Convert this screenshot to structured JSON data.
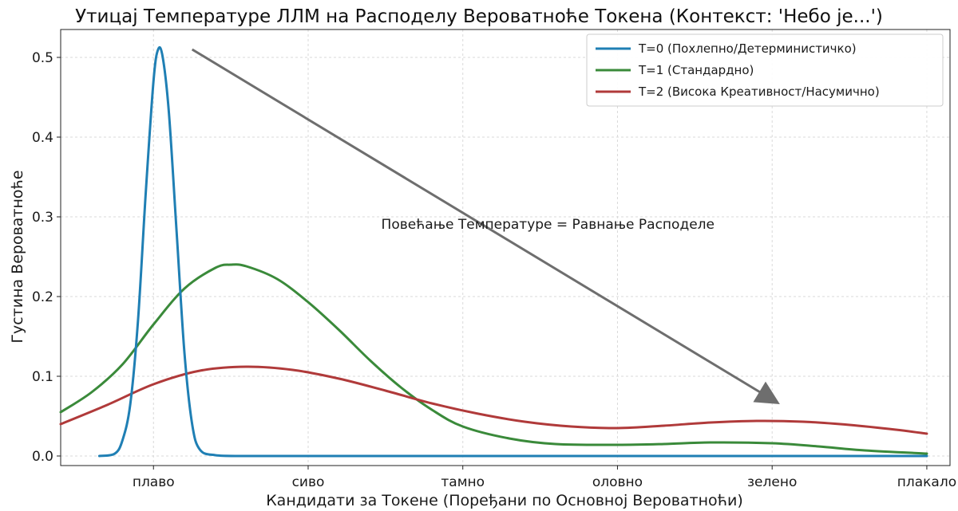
{
  "chart_data": {
    "type": "line",
    "title": "Утицај Температуре ЛЛМ на Расподелу Вероватноће Токена (Контекст: 'Небо је...')",
    "xlabel": "Кандидати за Токене (Поређани по Основној Вероватноћи)",
    "ylabel": "Густина Вероватноће",
    "xlim": [
      -0.6,
      5.15
    ],
    "ylim": [
      -0.012,
      0.535
    ],
    "categories": [
      "плаво",
      "сиво",
      "тамно",
      "оловно",
      "зелено",
      "плакало"
    ],
    "yticks": [
      0.0,
      0.1,
      0.2,
      0.3,
      0.4,
      0.5
    ],
    "ytick_labels": [
      "0.0",
      "0.1",
      "0.2",
      "0.3",
      "0.4",
      "0.5"
    ],
    "grid": true,
    "legend_position": "top-right",
    "series": [
      {
        "name": "T=0 (Похлепно/Детерминистичко)",
        "color": "#1f7fb4",
        "x": [
          -0.35,
          -0.25,
          -0.2,
          -0.15,
          -0.1,
          -0.05,
          0.0,
          0.03,
          0.06,
          0.1,
          0.15,
          0.2,
          0.25,
          0.3,
          0.4,
          0.6,
          1.0,
          2.0,
          3.0,
          4.0,
          5.0
        ],
        "values": [
          0.0,
          0.003,
          0.02,
          0.065,
          0.17,
          0.33,
          0.47,
          0.51,
          0.5,
          0.43,
          0.28,
          0.13,
          0.04,
          0.008,
          0.001,
          0.0,
          0.0,
          0.0,
          0.0,
          0.0,
          0.0
        ]
      },
      {
        "name": "T=1 (Стандардно)",
        "color": "#3a8a3a",
        "x": [
          -0.6,
          -0.4,
          -0.2,
          0.0,
          0.2,
          0.4,
          0.5,
          0.6,
          0.8,
          1.0,
          1.2,
          1.4,
          1.6,
          1.8,
          2.0,
          2.3,
          2.6,
          3.0,
          3.3,
          3.6,
          4.0,
          4.3,
          4.6,
          5.0
        ],
        "values": [
          0.055,
          0.08,
          0.115,
          0.165,
          0.21,
          0.236,
          0.24,
          0.238,
          0.222,
          0.193,
          0.158,
          0.12,
          0.086,
          0.058,
          0.037,
          0.022,
          0.015,
          0.014,
          0.015,
          0.017,
          0.016,
          0.012,
          0.007,
          0.003
        ]
      },
      {
        "name": "T=2 (Висока Креативност/Насумично)",
        "color": "#b03a3a",
        "x": [
          -0.6,
          -0.3,
          0.0,
          0.3,
          0.6,
          0.9,
          1.2,
          1.5,
          1.8,
          2.1,
          2.4,
          2.7,
          3.0,
          3.3,
          3.6,
          3.9,
          4.2,
          4.5,
          4.8,
          5.0
        ],
        "values": [
          0.04,
          0.064,
          0.09,
          0.107,
          0.112,
          0.108,
          0.097,
          0.082,
          0.066,
          0.053,
          0.043,
          0.037,
          0.035,
          0.038,
          0.042,
          0.044,
          0.043,
          0.039,
          0.033,
          0.028
        ]
      }
    ],
    "annotation": {
      "text": "Повећање Температуре = Равнање Расподеле",
      "text_x": 2.55,
      "text_y": 0.285,
      "arrow_from": [
        0.25,
        0.51
      ],
      "arrow_to": [
        4.05,
        0.065
      ],
      "color": "#6e6e6e"
    }
  }
}
